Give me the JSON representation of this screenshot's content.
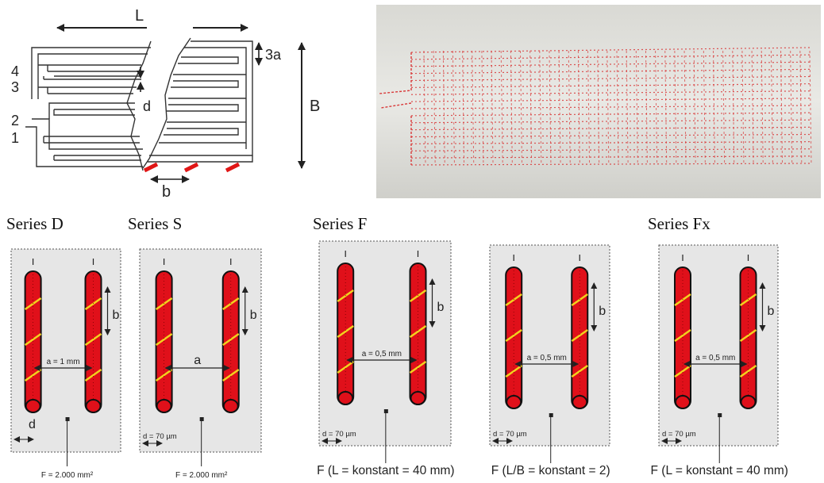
{
  "colors": {
    "conductor": "#e0101a",
    "stitch": "#f2d21e",
    "panel_bg": "#e6e6e6",
    "contact": "#e01616",
    "photo_fabric": "#d8d8d3",
    "photo_stitch": "#d93a3a"
  },
  "schematic": {
    "label_L": "L",
    "label_3a": "3a",
    "label_B": "B",
    "label_d": "d",
    "label_b": "b",
    "line_numbers": [
      "4",
      "3",
      "2",
      "1"
    ]
  },
  "series_titles": {
    "d": "Series D",
    "s": "Series S",
    "f": "Series F",
    "fx": "Series Fx"
  },
  "panels": [
    {
      "id": "d",
      "gap_label": "a = 1 mm",
      "b_label": "b",
      "d_label": "d",
      "area_label": "F = 2.000 mm²"
    },
    {
      "id": "s",
      "gap_label": "a",
      "b_label": "b",
      "d_label": "d = 70 µm",
      "area_label": "F = 2.000 mm²"
    },
    {
      "id": "f1",
      "gap_label": "a = 0,5 mm",
      "b_label": "b",
      "d_label": "d = 70 µm",
      "area_label": "F (L = konstant = 40 mm)"
    },
    {
      "id": "f2",
      "gap_label": "a = 0,5 mm",
      "b_label": "b",
      "d_label": "d = 70 µm",
      "area_label": "F (L/B = konstant = 2)"
    },
    {
      "id": "fx",
      "gap_label": "a = 0,5 mm",
      "b_label": "b",
      "d_label": "d = 70 µm",
      "area_label": "F (L = konstant = 40 mm)"
    }
  ]
}
